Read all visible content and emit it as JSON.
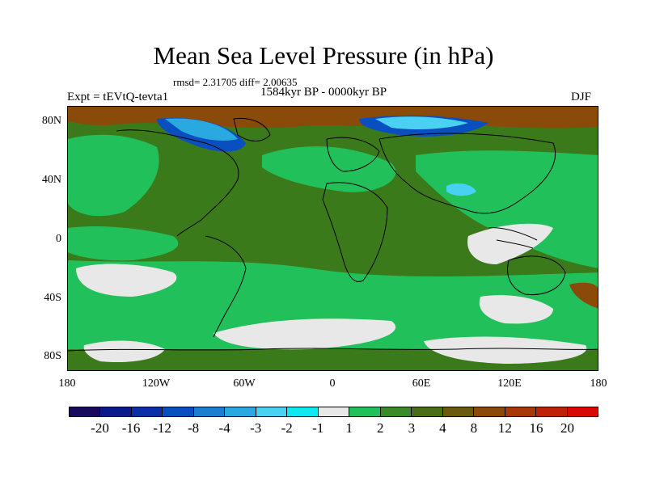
{
  "title": "Mean Sea Level Pressure (in hPa)",
  "stats_line": "rmsd= 2.31705 diff= 2.00635",
  "experiment_label": "Expt = tEVtQ-tevta1",
  "period_label": "1584kyr BP - 0000kyr BP",
  "season_label": "DJF",
  "lat_ticks": [
    "80N",
    "40N",
    "0",
    "40S",
    "80S"
  ],
  "lon_ticks": [
    "180",
    "120W",
    "60W",
    "0",
    "60E",
    "120E",
    "180"
  ],
  "colorbar": {
    "labels": [
      "-20",
      "-16",
      "-12",
      "-8",
      "-4",
      "-3",
      "-2",
      "-1",
      "1",
      "2",
      "3",
      "4",
      "8",
      "12",
      "16",
      "20"
    ],
    "colors": [
      "#1a0a5e",
      "#0a1a8c",
      "#0a2fa8",
      "#0a4fc0",
      "#1a7fd0",
      "#2aa8e0",
      "#4ad0f0",
      "#10e8f0",
      "#e8e8e8",
      "#22c05a",
      "#3b8a2a",
      "#4a6e18",
      "#6a5a10",
      "#8a4a0a",
      "#a8380a",
      "#c02008",
      "#d80808"
    ]
  }
}
